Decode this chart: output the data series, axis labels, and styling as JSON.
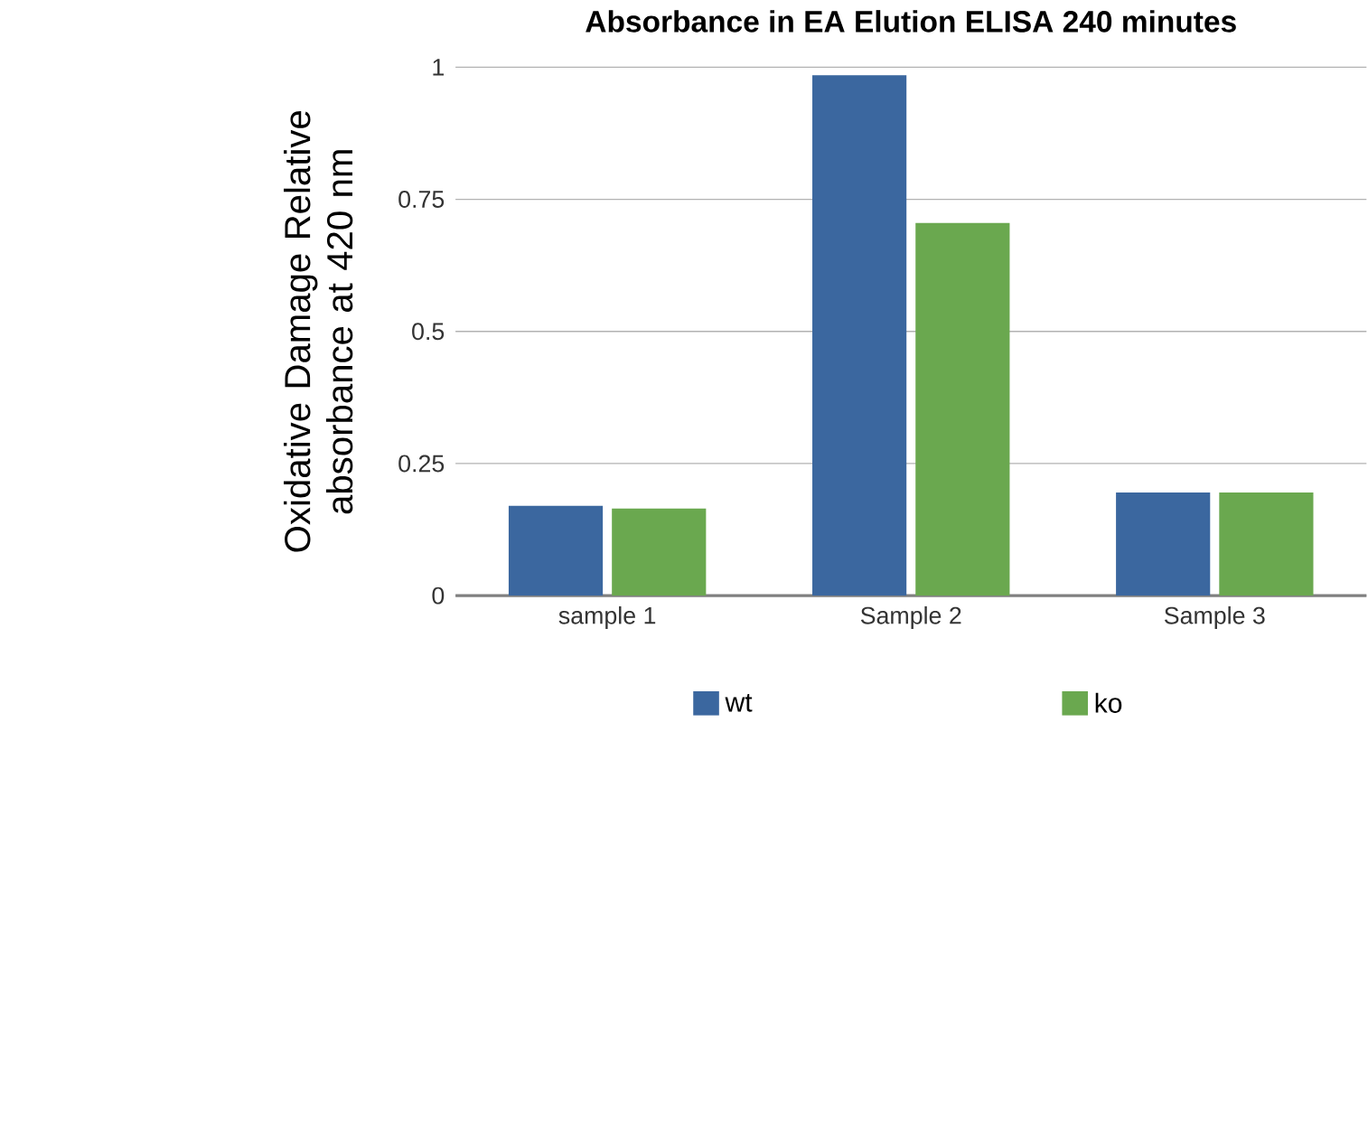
{
  "chart_data": {
    "type": "bar",
    "title": "Absorbance in EA Elution ELISA 240 minutes",
    "ylabel": "Oxidative Damage Relative absorbance at 420 nm",
    "categories": [
      "sample 1",
      "Sample 2",
      "Sample 3"
    ],
    "series": [
      {
        "name": "wt",
        "color": "#3b679f",
        "values": [
          0.17,
          0.985,
          0.195
        ]
      },
      {
        "name": "ko",
        "color": "#6aa84f",
        "values": [
          0.165,
          0.705,
          0.195
        ]
      }
    ],
    "ylim": [
      0,
      1
    ],
    "yticks": [
      0,
      0.25,
      0.5,
      0.75,
      1
    ],
    "grid": "y",
    "legend": "bottom"
  }
}
